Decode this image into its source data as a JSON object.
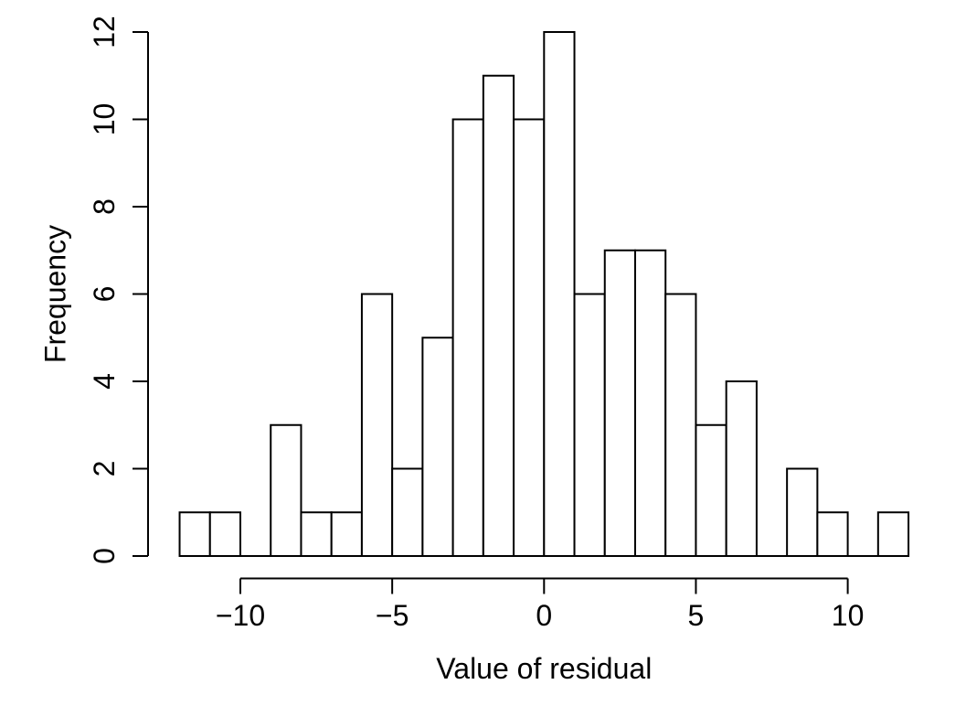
{
  "figure": {
    "background": "#ffffff",
    "stroke_color": "#000000"
  },
  "chart_data": {
    "type": "bar",
    "variant": "histogram",
    "title": "",
    "xlabel": "Value of residual",
    "ylabel": "Frequency",
    "bin_start": -12,
    "bin_width": 1,
    "counts": [
      1,
      1,
      0,
      3,
      1,
      1,
      6,
      2,
      5,
      10,
      11,
      10,
      12,
      6,
      7,
      7,
      6,
      3,
      4,
      0,
      2,
      1,
      0,
      1
    ],
    "xlim": [
      -12,
      12
    ],
    "ylim": [
      0,
      12
    ],
    "x_ticks": [
      {
        "value": -10,
        "label": "−10"
      },
      {
        "value": -5,
        "label": "−5"
      },
      {
        "value": 0,
        "label": "0"
      },
      {
        "value": 5,
        "label": "5"
      },
      {
        "value": 10,
        "label": "10"
      }
    ],
    "y_ticks": [
      {
        "value": 0,
        "label": "0"
      },
      {
        "value": 2,
        "label": "2"
      },
      {
        "value": 4,
        "label": "4"
      },
      {
        "value": 6,
        "label": "6"
      },
      {
        "value": 8,
        "label": "8"
      },
      {
        "value": 10,
        "label": "10"
      },
      {
        "value": 12,
        "label": "12"
      }
    ],
    "grid": false,
    "legend": "none",
    "bar_fill": "#ffffff",
    "bar_stroke": "#000000"
  }
}
